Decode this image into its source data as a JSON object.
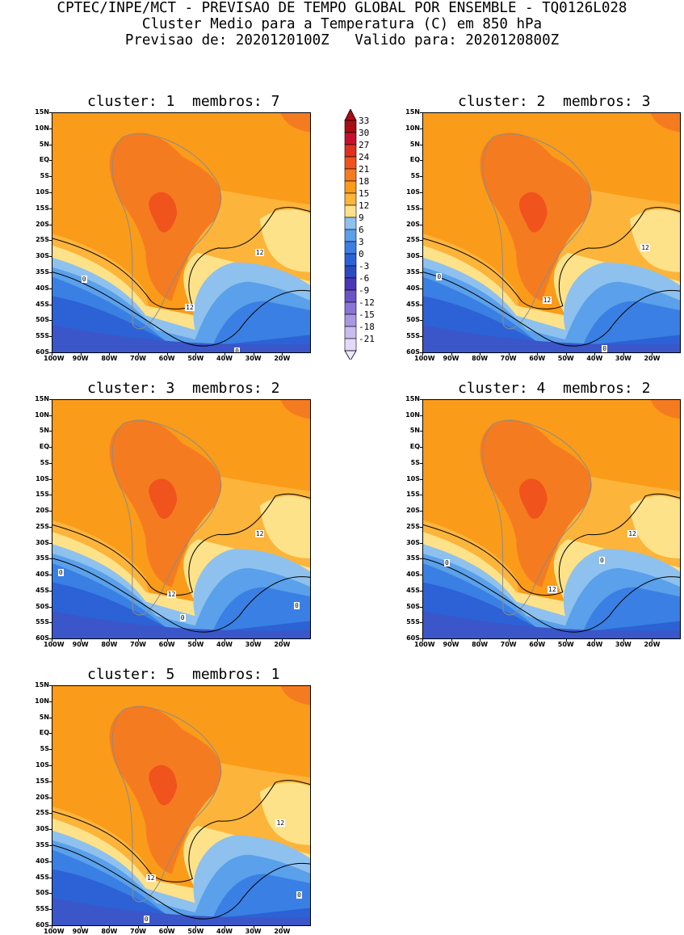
{
  "header": {
    "line1": "CPTEC/INPE/MCT - PREVISAO DE TEMPO GLOBAL POR ENSEMBLE - TQ0126L028",
    "line2": "Cluster Medio para a Temperatura (C) em 850 hPa",
    "line3": "Previsao de: 2020120100Z   Valido para: 2020120800Z"
  },
  "lat_labels": [
    "15N",
    "10N",
    "5N",
    "EQ",
    "5S",
    "10S",
    "15S",
    "20S",
    "25S",
    "30S",
    "35S",
    "40S",
    "45S",
    "50S",
    "55S",
    "60S"
  ],
  "lon_labels": [
    "100W",
    "90W",
    "80W",
    "70W",
    "60W",
    "50W",
    "40W",
    "30W",
    "20W"
  ],
  "panels": [
    {
      "title": "cluster: 1  membros: 7",
      "contour_labels": [
        "12",
        "0",
        "12",
        "0"
      ]
    },
    {
      "title": "cluster: 2  membros: 3",
      "contour_labels": [
        "12",
        "0",
        "12",
        "0"
      ]
    },
    {
      "title": "cluster: 3  membros: 2",
      "contour_labels": [
        "12",
        "0",
        "12",
        "0",
        "0"
      ]
    },
    {
      "title": "cluster: 4  membros: 2",
      "contour_labels": [
        "12",
        "0",
        "12",
        "0"
      ]
    },
    {
      "title": "cluster: 5  membros: 1",
      "contour_labels": [
        "12",
        "12",
        "0",
        "0"
      ]
    }
  ],
  "colorbar": {
    "levels": [
      "33",
      "30",
      "27",
      "24",
      "21",
      "18",
      "15",
      "12",
      "9",
      "6",
      "3",
      "0",
      "-3",
      "-6",
      "-9",
      "-12",
      "-15",
      "-18",
      "-21"
    ],
    "colors": [
      "#a50f15",
      "#c8102e",
      "#e0301e",
      "#f0531c",
      "#f57b20",
      "#fa9b1a",
      "#fcb43a",
      "#fde28a",
      "#8ec1ee",
      "#5aa0ea",
      "#3a7fe3",
      "#2c62d6",
      "#2a4ac4",
      "#4a38b8",
      "#6a54c8",
      "#8a74d8",
      "#a898e4",
      "#c8bcf0",
      "#e2daf8"
    ]
  }
}
